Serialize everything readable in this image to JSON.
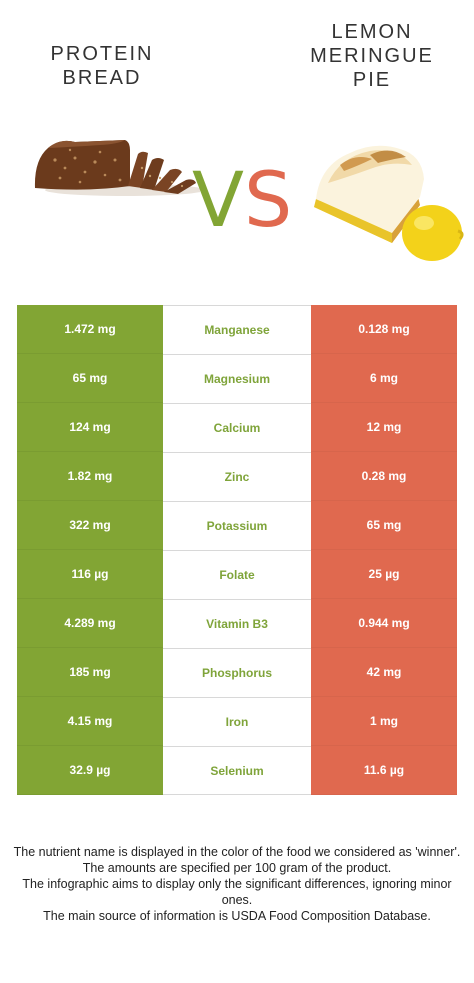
{
  "left_food": {
    "line1": "PROTEIN",
    "line2": "BREAD"
  },
  "right_food": {
    "line1": "LEMON",
    "line2": "MERINGUE",
    "line3": "PIE"
  },
  "vs": {
    "v": "V",
    "s": "S"
  },
  "colors": {
    "left": "#82a534",
    "right": "#e0694f",
    "winner_text": "#7fa43a"
  },
  "rows": [
    {
      "left": "1.472 mg",
      "nutrient": "Manganese",
      "right": "0.128 mg"
    },
    {
      "left": "65 mg",
      "nutrient": "Magnesium",
      "right": "6 mg"
    },
    {
      "left": "124 mg",
      "nutrient": "Calcium",
      "right": "12 mg"
    },
    {
      "left": "1.82 mg",
      "nutrient": "Zinc",
      "right": "0.28 mg"
    },
    {
      "left": "322 mg",
      "nutrient": "Potassium",
      "right": "65 mg"
    },
    {
      "left": "116 µg",
      "nutrient": "Folate",
      "right": "25 µg"
    },
    {
      "left": "4.289 mg",
      "nutrient": "Vitamin B3",
      "right": "0.944 mg"
    },
    {
      "left": "185 mg",
      "nutrient": "Phosphorus",
      "right": "42 mg"
    },
    {
      "left": "4.15 mg",
      "nutrient": "Iron",
      "right": "1 mg"
    },
    {
      "left": "32.9 µg",
      "nutrient": "Selenium",
      "right": "11.6 µg"
    }
  ],
  "footer": [
    "The nutrient name is displayed in the color of the food we considered as 'winner'.",
    "The amounts are specified per 100 gram of the product.",
    "The infographic aims to display only the significant differences, ignoring minor ones.",
    "The main source of information is USDA Food Composition Database."
  ]
}
